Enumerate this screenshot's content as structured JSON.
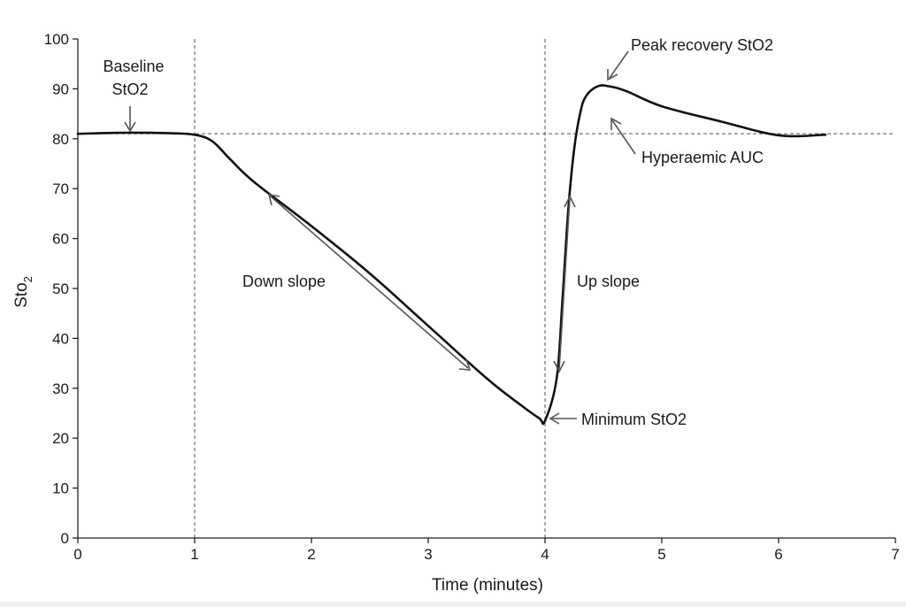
{
  "chart_data": {
    "type": "line",
    "xlabel": "Time (minutes)",
    "ylabel_main": "Sto",
    "ylabel_sub": "2",
    "xlim": [
      0,
      7
    ],
    "ylim": [
      0,
      100
    ],
    "xticks": [
      "0",
      "1",
      "2",
      "3",
      "4",
      "5",
      "6",
      "7"
    ],
    "yticks": [
      "0",
      "10",
      "20",
      "30",
      "40",
      "50",
      "60",
      "70",
      "80",
      "90",
      "100"
    ],
    "grid": false,
    "series": [
      {
        "x": [
          0,
          0.4,
          0.8,
          1.0,
          1.15,
          1.3,
          1.5,
          2.0,
          2.5,
          3.0,
          3.5,
          3.8,
          3.95,
          4.0,
          4.1,
          4.15,
          4.2,
          4.25,
          4.3,
          4.35,
          4.45,
          4.55,
          4.7,
          5.0,
          5.5,
          6.0,
          6.4
        ],
        "y": [
          81,
          81.2,
          81.1,
          80.8,
          79.5,
          76,
          71.5,
          62.5,
          53,
          42.5,
          32,
          26.5,
          24,
          23.5,
          32,
          48,
          66,
          78,
          85,
          88.5,
          90.5,
          90.5,
          89.5,
          86.5,
          83.5,
          80.7,
          80.8
        ]
      }
    ],
    "reference_lines": {
      "horizontal_y": 81,
      "vertical_x": [
        1,
        4
      ]
    },
    "annotations": {
      "baseline": [
        "Baseline",
        "StO2"
      ],
      "down_slope": "Down slope",
      "up_slope": "Up slope",
      "minimum": "Minimum StO2",
      "peak": "Peak recovery StO2",
      "hyperaemic": "Hyperaemic AUC"
    }
  }
}
